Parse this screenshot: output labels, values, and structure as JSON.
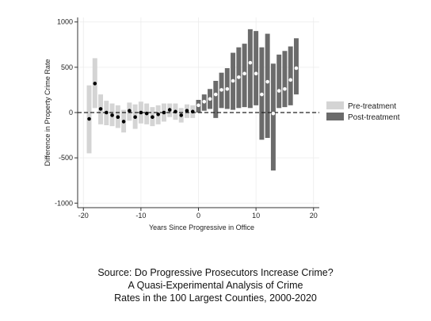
{
  "chart_data": {
    "type": "bar",
    "xlabel": "Years Since Progressive in Office",
    "ylabel": "Difference in Property Crime Rate",
    "xlim": [
      -21,
      21
    ],
    "ylim": [
      -1050,
      1050
    ],
    "xticks": [
      -20,
      -10,
      0,
      10,
      20
    ],
    "yticks": [
      1000,
      500,
      0,
      -500,
      -1000
    ],
    "xtick_labels": [
      "-20",
      "-10",
      "0",
      "10",
      "20"
    ],
    "ytick_labels": [
      "1000",
      "500",
      "0",
      "-500",
      "-1000"
    ],
    "reference_line": 0,
    "grid": true,
    "legend_position": "right",
    "series": [
      {
        "name": "Pre-treatment",
        "color": "#d4d4d4",
        "points": [
          {
            "x": -19,
            "estimate": -70,
            "low": -450,
            "high": 300
          },
          {
            "x": -18,
            "estimate": 320,
            "low": 50,
            "high": 600
          },
          {
            "x": -17,
            "estimate": 40,
            "low": -130,
            "high": 200
          },
          {
            "x": -16,
            "estimate": 0,
            "low": -140,
            "high": 130
          },
          {
            "x": -15,
            "estimate": -30,
            "low": -150,
            "high": 100
          },
          {
            "x": -14,
            "estimate": -50,
            "low": -170,
            "high": 80
          },
          {
            "x": -13,
            "estimate": -100,
            "low": -220,
            "high": 30
          },
          {
            "x": -12,
            "estimate": 20,
            "low": -90,
            "high": 110
          },
          {
            "x": -11,
            "estimate": -50,
            "low": -180,
            "high": 90
          },
          {
            "x": -10,
            "estimate": 0,
            "low": -120,
            "high": 120
          },
          {
            "x": -9,
            "estimate": -10,
            "low": -130,
            "high": 100
          },
          {
            "x": -8,
            "estimate": -50,
            "low": -150,
            "high": 60
          },
          {
            "x": -7,
            "estimate": -20,
            "low": -130,
            "high": 80
          },
          {
            "x": -6,
            "estimate": 0,
            "low": -100,
            "high": 100
          },
          {
            "x": -5,
            "estimate": 30,
            "low": -50,
            "high": 100
          },
          {
            "x": -4,
            "estimate": 10,
            "low": -80,
            "high": 100
          },
          {
            "x": -3,
            "estimate": -30,
            "low": -110,
            "high": 50
          },
          {
            "x": -2,
            "estimate": 20,
            "low": -60,
            "high": 90
          },
          {
            "x": -1,
            "estimate": 10,
            "low": -60,
            "high": 80
          }
        ]
      },
      {
        "name": "Post-treatment",
        "color": "#6b6b6b",
        "points": [
          {
            "x": 0,
            "estimate": 80,
            "low": 0,
            "high": 140
          },
          {
            "x": 1,
            "estimate": 120,
            "low": 20,
            "high": 200
          },
          {
            "x": 2,
            "estimate": 150,
            "low": 40,
            "high": 260
          },
          {
            "x": 3,
            "estimate": 200,
            "low": -60,
            "high": 350
          },
          {
            "x": 4,
            "estimate": 250,
            "low": 50,
            "high": 440
          },
          {
            "x": 5,
            "estimate": 260,
            "low": 40,
            "high": 490
          },
          {
            "x": 6,
            "estimate": 350,
            "low": 30,
            "high": 660
          },
          {
            "x": 7,
            "estimate": 390,
            "low": 50,
            "high": 720
          },
          {
            "x": 8,
            "estimate": 430,
            "low": 60,
            "high": 760
          },
          {
            "x": 9,
            "estimate": 550,
            "low": 50,
            "high": 920
          },
          {
            "x": 10,
            "estimate": 430,
            "low": 80,
            "high": 900
          },
          {
            "x": 11,
            "estimate": 200,
            "low": -300,
            "high": 720
          },
          {
            "x": 12,
            "estimate": 340,
            "low": -280,
            "high": 870
          },
          {
            "x": 13,
            "estimate": -10,
            "low": -640,
            "high": 540
          },
          {
            "x": 14,
            "estimate": 240,
            "low": 50,
            "high": 640
          },
          {
            "x": 15,
            "estimate": 260,
            "low": 60,
            "high": 680
          },
          {
            "x": 16,
            "estimate": 360,
            "low": 80,
            "high": 730
          },
          {
            "x": 17,
            "estimate": 490,
            "low": 200,
            "high": 820
          }
        ]
      }
    ]
  },
  "caption": {
    "line1": "Source: Do Progressive Prosecutors Increase Crime?",
    "line2": "A Quasi-Experimental Analysis of Crime",
    "line3": "Rates in the 100 Largest Counties, 2000-2020"
  }
}
